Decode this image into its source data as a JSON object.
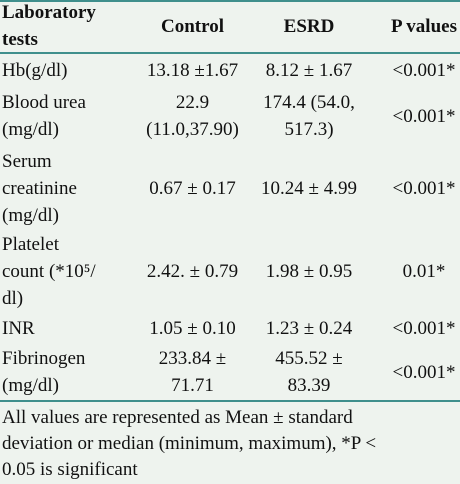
{
  "table": {
    "header": [
      [
        "Laboratory",
        "tests"
      ],
      [
        "Control"
      ],
      [
        "ESRD"
      ],
      [
        "P values"
      ]
    ],
    "rows": [
      [
        [
          "Hb(g/dl)"
        ],
        [
          "13.18 ±1.67"
        ],
        [
          "8.12 ± 1.67"
        ],
        [
          "<0.001*"
        ]
      ],
      [
        [
          "Blood urea",
          "(mg/dl)"
        ],
        [
          "22.9",
          "(11.0,37.90)"
        ],
        [
          "174.4 (54.0,",
          "517.3)"
        ],
        [
          "<0.001*"
        ]
      ],
      [
        [
          "Serum",
          "creatinine",
          "(mg/dl)"
        ],
        [
          "0.67 ± 0.17"
        ],
        [
          "10.24 ± 4.99"
        ],
        [
          "<0.001*"
        ]
      ],
      [
        [
          "Platelet",
          "count (*10⁵/",
          "dl)"
        ],
        [
          "2.42. ± 0.79"
        ],
        [
          "1.98 ± 0.95"
        ],
        [
          "0.01*"
        ]
      ],
      [
        [
          "INR"
        ],
        [
          "1.05 ± 0.10"
        ],
        [
          "1.23 ± 0.24"
        ],
        [
          "<0.001*"
        ]
      ],
      [
        [
          "Fibrinogen",
          "(mg/dl)"
        ],
        [
          "233.84 ±",
          "71.71"
        ],
        [
          "455.52 ±",
          "83.39"
        ],
        [
          "<0.001*"
        ]
      ]
    ]
  },
  "footnote": [
    "All values are represented as Mean ± standard",
    "deviation or median (minimum, maximum), *P <",
    "0.05 is significant"
  ]
}
